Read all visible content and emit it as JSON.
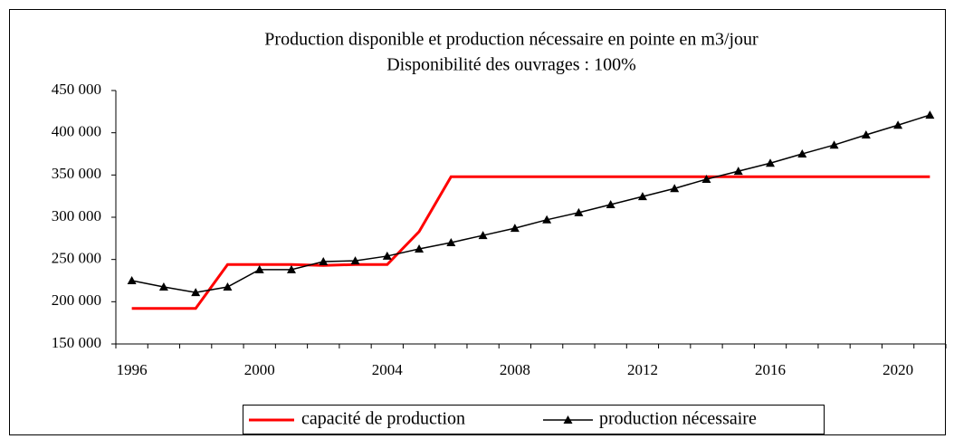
{
  "chart_data": {
    "type": "line",
    "title": "Production disponible et production nécessaire en pointe en m3/jour",
    "subtitle": "Disponibilité des ouvrages : 100%",
    "categories": [
      "1996",
      null,
      null,
      null,
      "2000",
      null,
      null,
      null,
      "2004",
      null,
      null,
      null,
      "2008",
      null,
      null,
      null,
      "2012",
      null,
      null,
      null,
      "2016",
      null,
      null,
      null,
      "2020",
      null
    ],
    "series": [
      {
        "name": "capacité de production",
        "color": "#ff0000",
        "marker": "none",
        "values": [
          192000,
          192000,
          192000,
          244000,
          244000,
          244000,
          243000,
          244000,
          244000,
          283000,
          348000,
          348000,
          348000,
          348000,
          348000,
          348000,
          348000,
          348000,
          348000,
          348000,
          348000,
          348000,
          348000,
          348000,
          348000,
          348000
        ]
      },
      {
        "name": "production nécessaire",
        "color": "#000000",
        "marker": "triangle",
        "values": [
          225000,
          217500,
          211000,
          217500,
          238000,
          238000,
          247500,
          248500,
          254000,
          262500,
          270000,
          278500,
          287000,
          297000,
          305500,
          315000,
          324500,
          334000,
          345000,
          354500,
          364000,
          375000,
          385500,
          397500,
          409000,
          421000
        ]
      }
    ],
    "ylim": [
      150000,
      450000
    ],
    "yticks": [
      {
        "value": 150000,
        "label": "150 000"
      },
      {
        "value": 200000,
        "label": "200 000"
      },
      {
        "value": 250000,
        "label": "250 000"
      },
      {
        "value": 300000,
        "label": "300 000"
      },
      {
        "value": 350000,
        "label": "350 000"
      },
      {
        "value": 400000,
        "label": "400 000"
      },
      {
        "value": 450000,
        "label": "450 000"
      }
    ],
    "grid": false,
    "legend": "bottom"
  }
}
